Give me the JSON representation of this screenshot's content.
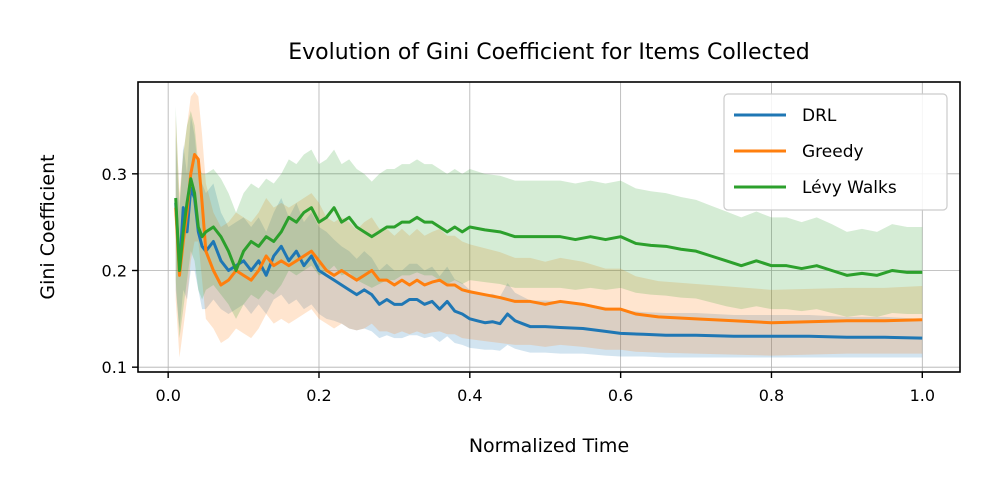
{
  "chart_data": {
    "type": "line",
    "title": "Evolution of Gini Coefficient for Items Collected",
    "xlabel": "Normalized Time",
    "ylabel": "Gini Coefficient",
    "xlim": [
      -0.04,
      1.05
    ],
    "ylim": [
      0.095,
      0.395
    ],
    "xticks": [
      0.0,
      0.2,
      0.4,
      0.6,
      0.8,
      1.0
    ],
    "xtick_labels": [
      "0.0",
      "0.2",
      "0.4",
      "0.6",
      "0.8",
      "1.0"
    ],
    "yticks": [
      0.1,
      0.2,
      0.3
    ],
    "ytick_labels": [
      "0.1",
      "0.2",
      "0.3"
    ],
    "grid": true,
    "legend_position": "top-right",
    "series": [
      {
        "name": "DRL",
        "color": "#1f77b4",
        "x": [
          0.01,
          0.015,
          0.02,
          0.025,
          0.03,
          0.035,
          0.04,
          0.045,
          0.05,
          0.06,
          0.07,
          0.08,
          0.09,
          0.1,
          0.11,
          0.12,
          0.13,
          0.14,
          0.15,
          0.16,
          0.17,
          0.18,
          0.19,
          0.2,
          0.21,
          0.22,
          0.23,
          0.24,
          0.25,
          0.26,
          0.27,
          0.28,
          0.29,
          0.3,
          0.31,
          0.32,
          0.33,
          0.34,
          0.35,
          0.36,
          0.37,
          0.38,
          0.39,
          0.4,
          0.41,
          0.42,
          0.43,
          0.44,
          0.45,
          0.46,
          0.47,
          0.48,
          0.5,
          0.52,
          0.55,
          0.58,
          0.6,
          0.63,
          0.66,
          0.7,
          0.75,
          0.8,
          0.85,
          0.9,
          0.95,
          1.0
        ],
        "y": [
          0.27,
          0.2,
          0.265,
          0.24,
          0.285,
          0.275,
          0.24,
          0.225,
          0.22,
          0.23,
          0.21,
          0.2,
          0.205,
          0.21,
          0.2,
          0.21,
          0.195,
          0.215,
          0.225,
          0.21,
          0.22,
          0.205,
          0.215,
          0.2,
          0.195,
          0.19,
          0.185,
          0.18,
          0.175,
          0.18,
          0.175,
          0.165,
          0.17,
          0.165,
          0.165,
          0.17,
          0.17,
          0.165,
          0.168,
          0.16,
          0.168,
          0.158,
          0.155,
          0.15,
          0.148,
          0.146,
          0.147,
          0.145,
          0.155,
          0.148,
          0.145,
          0.142,
          0.142,
          0.141,
          0.14,
          0.137,
          0.135,
          0.134,
          0.133,
          0.133,
          0.132,
          0.132,
          0.132,
          0.131,
          0.131,
          0.13
        ],
        "lower": [
          0.18,
          0.14,
          0.18,
          0.17,
          0.2,
          0.2,
          0.18,
          0.16,
          0.16,
          0.17,
          0.16,
          0.155,
          0.16,
          0.165,
          0.155,
          0.165,
          0.155,
          0.17,
          0.175,
          0.165,
          0.17,
          0.16,
          0.165,
          0.155,
          0.15,
          0.148,
          0.145,
          0.14,
          0.138,
          0.14,
          0.137,
          0.13,
          0.133,
          0.13,
          0.13,
          0.133,
          0.133,
          0.13,
          0.132,
          0.126,
          0.132,
          0.125,
          0.123,
          0.12,
          0.119,
          0.118,
          0.118,
          0.117,
          0.123,
          0.119,
          0.117,
          0.115,
          0.115,
          0.114,
          0.114,
          0.112,
          0.111,
          0.111,
          0.11,
          0.11,
          0.11,
          0.11,
          0.11,
          0.11,
          0.11,
          0.11
        ],
        "upper": [
          0.34,
          0.26,
          0.33,
          0.3,
          0.36,
          0.34,
          0.3,
          0.29,
          0.28,
          0.29,
          0.26,
          0.245,
          0.25,
          0.255,
          0.245,
          0.255,
          0.24,
          0.26,
          0.275,
          0.255,
          0.27,
          0.25,
          0.26,
          0.245,
          0.24,
          0.232,
          0.225,
          0.22,
          0.212,
          0.22,
          0.213,
          0.2,
          0.207,
          0.2,
          0.2,
          0.207,
          0.207,
          0.2,
          0.204,
          0.194,
          0.204,
          0.191,
          0.187,
          0.18,
          0.177,
          0.174,
          0.176,
          0.173,
          0.187,
          0.177,
          0.173,
          0.169,
          0.169,
          0.168,
          0.166,
          0.162,
          0.159,
          0.157,
          0.156,
          0.156,
          0.154,
          0.154,
          0.154,
          0.152,
          0.152,
          0.15
        ]
      },
      {
        "name": "Greedy",
        "color": "#ff7f0e",
        "x": [
          0.01,
          0.015,
          0.02,
          0.025,
          0.03,
          0.035,
          0.04,
          0.045,
          0.05,
          0.06,
          0.07,
          0.08,
          0.09,
          0.1,
          0.11,
          0.12,
          0.13,
          0.14,
          0.15,
          0.16,
          0.17,
          0.18,
          0.19,
          0.2,
          0.21,
          0.22,
          0.23,
          0.24,
          0.25,
          0.26,
          0.27,
          0.28,
          0.29,
          0.3,
          0.31,
          0.32,
          0.33,
          0.34,
          0.35,
          0.36,
          0.37,
          0.38,
          0.39,
          0.4,
          0.42,
          0.44,
          0.46,
          0.48,
          0.5,
          0.52,
          0.55,
          0.58,
          0.6,
          0.62,
          0.65,
          0.7,
          0.75,
          0.8,
          0.85,
          0.9,
          0.95,
          1.0
        ],
        "y": [
          0.265,
          0.195,
          0.23,
          0.26,
          0.3,
          0.32,
          0.315,
          0.27,
          0.22,
          0.2,
          0.185,
          0.19,
          0.2,
          0.195,
          0.19,
          0.2,
          0.215,
          0.205,
          0.21,
          0.205,
          0.21,
          0.215,
          0.22,
          0.21,
          0.2,
          0.195,
          0.2,
          0.195,
          0.19,
          0.195,
          0.2,
          0.19,
          0.19,
          0.185,
          0.19,
          0.185,
          0.19,
          0.185,
          0.188,
          0.19,
          0.185,
          0.185,
          0.18,
          0.178,
          0.175,
          0.172,
          0.168,
          0.168,
          0.165,
          0.168,
          0.165,
          0.16,
          0.16,
          0.155,
          0.152,
          0.15,
          0.148,
          0.146,
          0.147,
          0.148,
          0.148,
          0.149
        ],
        "lower": [
          0.17,
          0.11,
          0.14,
          0.17,
          0.21,
          0.23,
          0.23,
          0.19,
          0.15,
          0.14,
          0.125,
          0.13,
          0.14,
          0.135,
          0.13,
          0.14,
          0.155,
          0.145,
          0.15,
          0.145,
          0.15,
          0.155,
          0.16,
          0.15,
          0.145,
          0.14,
          0.145,
          0.14,
          0.138,
          0.14,
          0.145,
          0.137,
          0.137,
          0.134,
          0.137,
          0.134,
          0.137,
          0.134,
          0.136,
          0.137,
          0.134,
          0.134,
          0.13,
          0.129,
          0.127,
          0.125,
          0.123,
          0.123,
          0.121,
          0.123,
          0.121,
          0.118,
          0.118,
          0.116,
          0.115,
          0.114,
          0.113,
          0.112,
          0.113,
          0.114,
          0.114,
          0.114
        ],
        "upper": [
          0.36,
          0.28,
          0.32,
          0.35,
          0.38,
          0.385,
          0.38,
          0.34,
          0.29,
          0.26,
          0.245,
          0.25,
          0.26,
          0.255,
          0.25,
          0.26,
          0.275,
          0.265,
          0.27,
          0.265,
          0.27,
          0.275,
          0.28,
          0.27,
          0.255,
          0.25,
          0.255,
          0.25,
          0.242,
          0.25,
          0.255,
          0.243,
          0.243,
          0.236,
          0.243,
          0.236,
          0.243,
          0.236,
          0.24,
          0.243,
          0.236,
          0.236,
          0.23,
          0.227,
          0.223,
          0.219,
          0.213,
          0.213,
          0.209,
          0.213,
          0.209,
          0.202,
          0.202,
          0.194,
          0.189,
          0.186,
          0.183,
          0.18,
          0.181,
          0.182,
          0.182,
          0.184
        ]
      },
      {
        "name": "Lévy Walks",
        "color": "#2ca02c",
        "x": [
          0.01,
          0.015,
          0.02,
          0.025,
          0.03,
          0.035,
          0.04,
          0.045,
          0.05,
          0.06,
          0.07,
          0.08,
          0.09,
          0.1,
          0.11,
          0.12,
          0.13,
          0.14,
          0.15,
          0.16,
          0.17,
          0.18,
          0.19,
          0.2,
          0.21,
          0.22,
          0.23,
          0.24,
          0.25,
          0.26,
          0.27,
          0.28,
          0.29,
          0.3,
          0.31,
          0.32,
          0.33,
          0.34,
          0.35,
          0.36,
          0.37,
          0.38,
          0.39,
          0.4,
          0.42,
          0.44,
          0.46,
          0.48,
          0.5,
          0.52,
          0.54,
          0.56,
          0.58,
          0.6,
          0.62,
          0.64,
          0.66,
          0.68,
          0.7,
          0.72,
          0.74,
          0.76,
          0.78,
          0.8,
          0.82,
          0.84,
          0.86,
          0.88,
          0.9,
          0.92,
          0.94,
          0.96,
          0.98,
          1.0
        ],
        "y": [
          0.275,
          0.2,
          0.24,
          0.27,
          0.295,
          0.28,
          0.245,
          0.235,
          0.24,
          0.245,
          0.235,
          0.22,
          0.2,
          0.22,
          0.23,
          0.225,
          0.235,
          0.23,
          0.24,
          0.255,
          0.25,
          0.26,
          0.265,
          0.25,
          0.255,
          0.265,
          0.25,
          0.255,
          0.245,
          0.24,
          0.235,
          0.24,
          0.245,
          0.245,
          0.25,
          0.25,
          0.255,
          0.25,
          0.25,
          0.245,
          0.24,
          0.245,
          0.24,
          0.245,
          0.242,
          0.24,
          0.235,
          0.235,
          0.235,
          0.235,
          0.232,
          0.235,
          0.232,
          0.235,
          0.228,
          0.226,
          0.225,
          0.222,
          0.22,
          0.215,
          0.21,
          0.205,
          0.21,
          0.205,
          0.205,
          0.202,
          0.205,
          0.2,
          0.195,
          0.197,
          0.195,
          0.2,
          0.198,
          0.198
        ],
        "lower": [
          0.19,
          0.13,
          0.16,
          0.19,
          0.22,
          0.21,
          0.18,
          0.17,
          0.18,
          0.185,
          0.175,
          0.165,
          0.15,
          0.165,
          0.175,
          0.17,
          0.18,
          0.175,
          0.185,
          0.2,
          0.195,
          0.2,
          0.205,
          0.195,
          0.198,
          0.205,
          0.195,
          0.198,
          0.19,
          0.186,
          0.182,
          0.186,
          0.19,
          0.19,
          0.195,
          0.195,
          0.198,
          0.195,
          0.195,
          0.19,
          0.186,
          0.19,
          0.186,
          0.19,
          0.188,
          0.186,
          0.182,
          0.182,
          0.182,
          0.182,
          0.18,
          0.182,
          0.18,
          0.182,
          0.177,
          0.175,
          0.174,
          0.172,
          0.171,
          0.167,
          0.163,
          0.16,
          0.163,
          0.16,
          0.16,
          0.158,
          0.16,
          0.156,
          0.152,
          0.154,
          0.152,
          0.156,
          0.155,
          0.155
        ],
        "upper": [
          0.37,
          0.27,
          0.32,
          0.35,
          0.365,
          0.35,
          0.31,
          0.3,
          0.3,
          0.305,
          0.295,
          0.28,
          0.26,
          0.28,
          0.29,
          0.285,
          0.295,
          0.29,
          0.3,
          0.315,
          0.31,
          0.32,
          0.325,
          0.31,
          0.315,
          0.325,
          0.31,
          0.315,
          0.305,
          0.3,
          0.292,
          0.3,
          0.305,
          0.305,
          0.31,
          0.31,
          0.315,
          0.31,
          0.31,
          0.305,
          0.3,
          0.305,
          0.3,
          0.305,
          0.3,
          0.298,
          0.293,
          0.293,
          0.293,
          0.293,
          0.29,
          0.293,
          0.29,
          0.293,
          0.285,
          0.282,
          0.28,
          0.276,
          0.273,
          0.267,
          0.261,
          0.255,
          0.261,
          0.255,
          0.255,
          0.25,
          0.255,
          0.248,
          0.24,
          0.243,
          0.24,
          0.248,
          0.245,
          0.245
        ]
      }
    ]
  }
}
